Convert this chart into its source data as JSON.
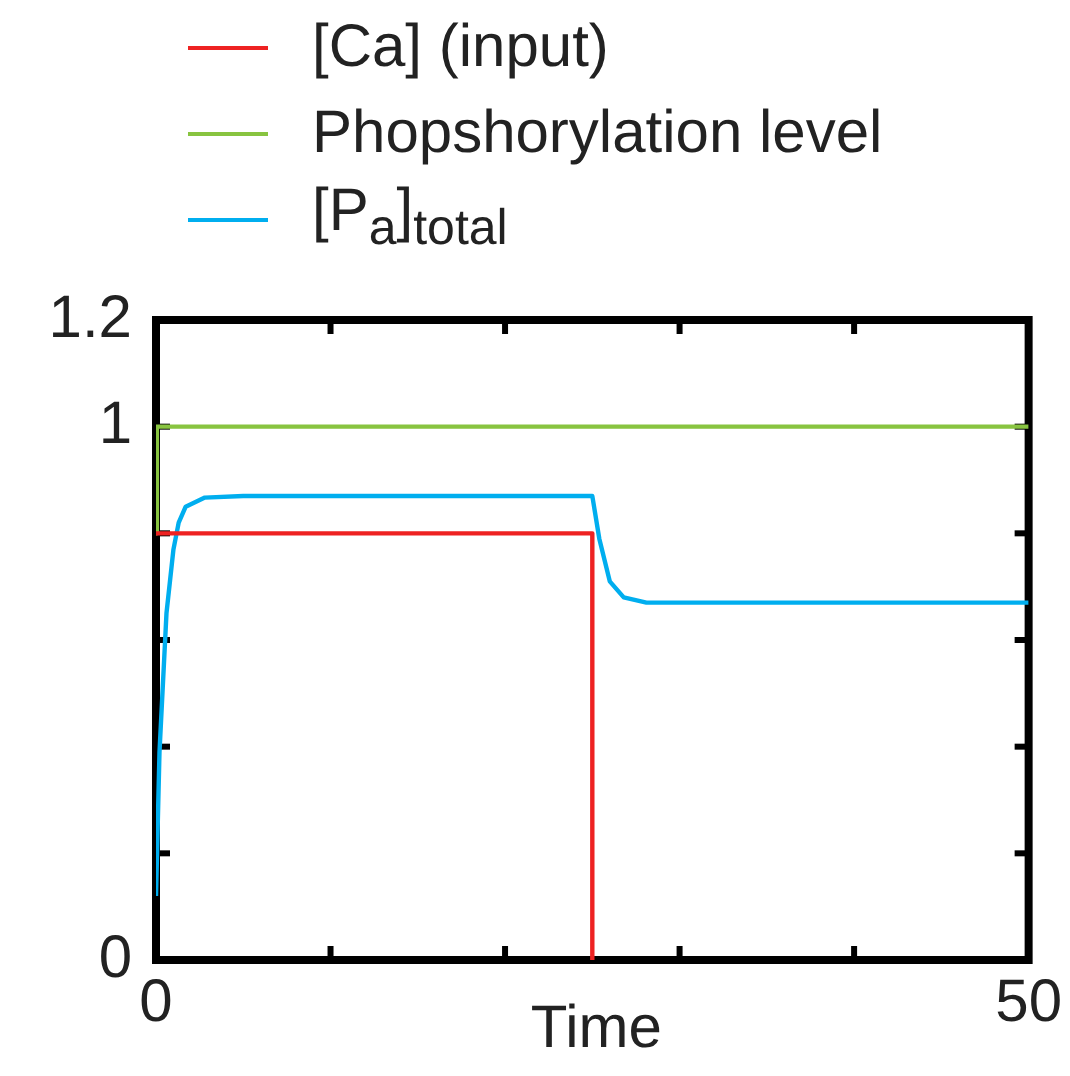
{
  "chart_data": {
    "type": "line",
    "xlabel": "Time",
    "legend": "top",
    "marker": "none",
    "grid": false,
    "xlim": [
      0,
      50
    ],
    "xticks": [
      0,
      {
        "value": 10,
        "label": null
      },
      {
        "value": 20,
        "label": null
      },
      {
        "value": 30,
        "label": null
      },
      {
        "value": 40,
        "label": null
      },
      50
    ],
    "ylim": [
      0,
      1.2
    ],
    "yticks": [
      0,
      {
        "value": 0.2,
        "label": null
      },
      {
        "value": 0.4,
        "label": null
      },
      {
        "value": 0.6,
        "label": null
      },
      {
        "value": 0.8,
        "label": null
      },
      1,
      1.2
    ],
    "series": [
      {
        "name": "[Ca] (input)",
        "color": "#ee2222",
        "x": [
          0,
          25,
          25
        ],
        "values": [
          0.8,
          0.8,
          0
        ]
      },
      {
        "name": "Phopshorylation level",
        "color": "#88c440",
        "x": [
          0,
          0.05,
          50
        ],
        "values": [
          0.8,
          1,
          1
        ]
      },
      {
        "name": "[P$_{a}$]$_{total}$",
        "color": "#00aeef",
        "x": [
          0,
          0.2,
          0.6,
          1,
          1.3,
          1.7,
          2.8,
          5,
          25,
          25.4,
          26,
          26.8,
          28.1,
          50
        ],
        "values": [
          0.12,
          0.39,
          0.65,
          0.77,
          0.82,
          0.85,
          0.867,
          0.87,
          0.87,
          0.79,
          0.71,
          0.68,
          0.67,
          0.67
        ]
      }
    ]
  }
}
